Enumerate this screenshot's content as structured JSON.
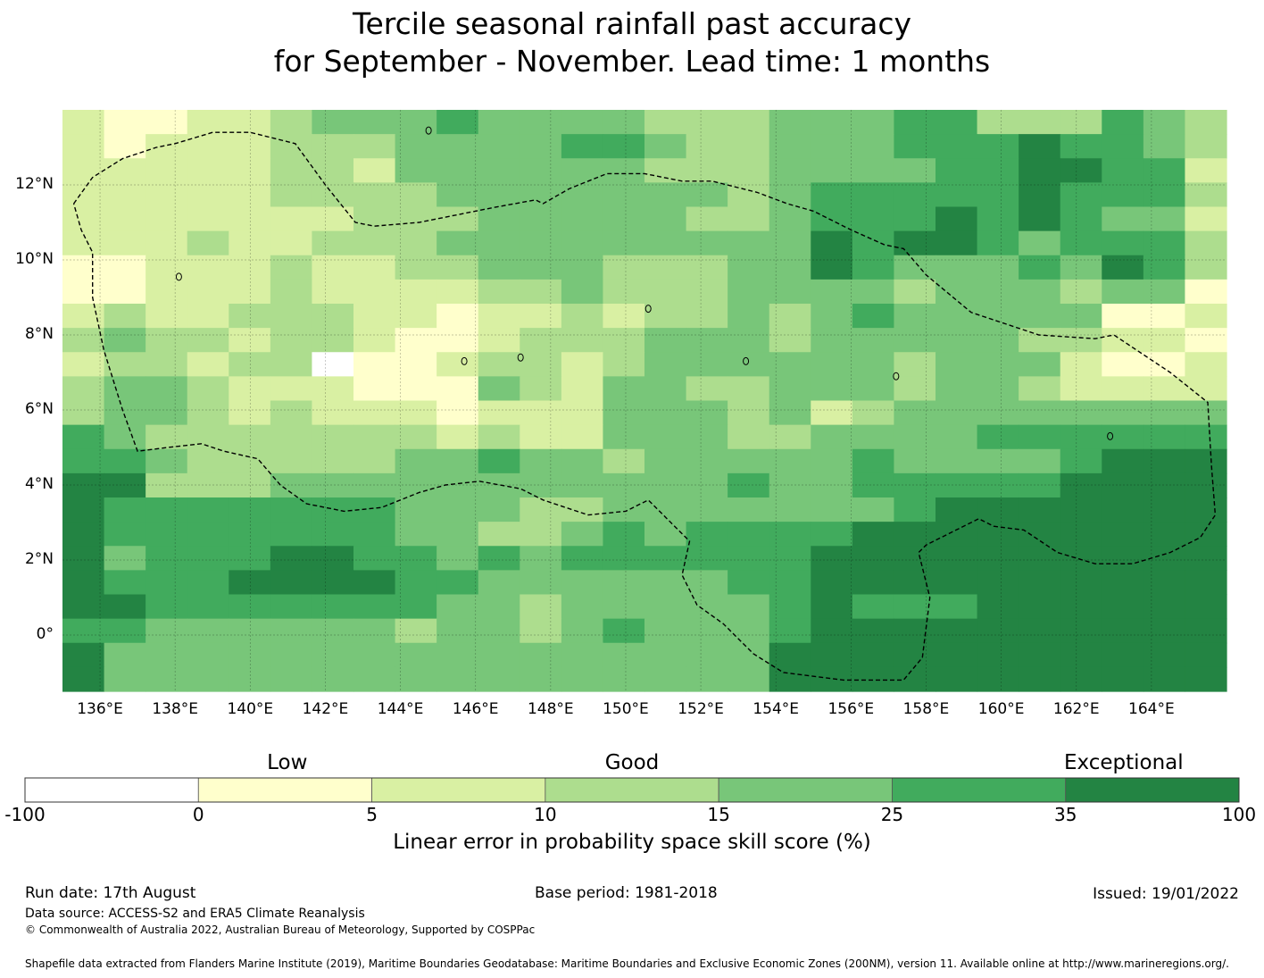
{
  "title": {
    "line1": "Tercile seasonal rainfall past accuracy",
    "line2": "for September - November. Lead time: 1 months"
  },
  "map": {
    "lon_ticks": [
      "136°E",
      "138°E",
      "140°E",
      "142°E",
      "144°E",
      "146°E",
      "148°E",
      "150°E",
      "152°E",
      "154°E",
      "156°E",
      "158°E",
      "160°E",
      "162°E",
      "164°E"
    ],
    "lat_ticks": [
      "12°N",
      "10°N",
      "8°N",
      "6°N",
      "4°N",
      "2°N",
      "0°"
    ],
    "extent": {
      "lon_min": 135.0,
      "lon_max": 166.0,
      "lat_min": -1.5,
      "lat_max": 14.0
    },
    "grid_rows": [
      "2112234445444433344455333543",
      "2122233344445543344455565543",
      "2222233244444433344445566552",
      "2222233334444444345555565553",
      "2222222333444443345556565442",
      "2223223334444444446566545553",
      "1122232233444333446544454653",
      "1122232222334333444434443441",
      "2322333221223233434544444112",
      "3433233211233344434444433221",
      "2332330112332344444434442112",
      "3443222111432443344434432222",
      "3443232221222444342344444444",
      "5433333332322444334444555555",
      "5543333344544344444544445666",
      "6633344444444444544555556666",
      "6555555544433444444456666666",
      "6555555544334545555666666666",
      "6455566554545555556666666666",
      "6555666655444444556666666666",
      "6655555554434444456555666666",
      "5544444434434544456666666666",
      "6444444444444444466666666666",
      "6444444444444444466666666666"
    ],
    "eez_boundary": [
      [
        135.3,
        11.5
      ],
      [
        135.8,
        12.2
      ],
      [
        136.6,
        12.7
      ],
      [
        137.5,
        13.0
      ],
      [
        138.0,
        13.1
      ],
      [
        139.0,
        13.4
      ],
      [
        140.0,
        13.4
      ],
      [
        141.2,
        13.1
      ],
      [
        142.0,
        12.0
      ],
      [
        142.8,
        11.0
      ],
      [
        143.3,
        10.9
      ],
      [
        144.5,
        11.0
      ],
      [
        145.5,
        11.2
      ],
      [
        146.5,
        11.4
      ],
      [
        147.6,
        11.6
      ],
      [
        147.8,
        11.5
      ],
      [
        148.5,
        11.9
      ],
      [
        149.5,
        12.3
      ],
      [
        150.5,
        12.3
      ],
      [
        151.5,
        12.1
      ],
      [
        152.3,
        12.1
      ],
      [
        153.5,
        11.8
      ],
      [
        154.3,
        11.5
      ],
      [
        155.0,
        11.3
      ],
      [
        156.0,
        10.8
      ],
      [
        156.9,
        10.4
      ],
      [
        157.4,
        10.3
      ],
      [
        158.0,
        9.6
      ],
      [
        159.2,
        8.6
      ],
      [
        161.0,
        8.0
      ],
      [
        162.5,
        7.9
      ],
      [
        163.0,
        8.0
      ],
      [
        164.5,
        7.0
      ],
      [
        165.5,
        6.2
      ],
      [
        165.6,
        4.5
      ],
      [
        165.7,
        3.2
      ],
      [
        165.3,
        2.6
      ],
      [
        164.5,
        2.2
      ],
      [
        163.5,
        1.9
      ],
      [
        162.5,
        1.9
      ],
      [
        161.5,
        2.2
      ],
      [
        160.6,
        2.8
      ],
      [
        159.8,
        2.9
      ],
      [
        159.4,
        3.1
      ],
      [
        158.8,
        2.8
      ],
      [
        158.0,
        2.4
      ],
      [
        157.8,
        2.2
      ],
      [
        158.1,
        1.0
      ],
      [
        157.9,
        -0.6
      ],
      [
        157.4,
        -1.2
      ],
      [
        155.8,
        -1.2
      ],
      [
        154.2,
        -1.0
      ],
      [
        153.4,
        -0.5
      ],
      [
        152.6,
        0.3
      ],
      [
        151.9,
        0.8
      ],
      [
        151.5,
        1.6
      ],
      [
        151.7,
        2.5
      ],
      [
        151.3,
        2.9
      ],
      [
        150.6,
        3.6
      ],
      [
        150.0,
        3.3
      ],
      [
        149.0,
        3.2
      ],
      [
        147.8,
        3.6
      ],
      [
        147.2,
        3.9
      ],
      [
        146.1,
        4.1
      ],
      [
        145.2,
        4.0
      ],
      [
        144.5,
        3.8
      ],
      [
        143.5,
        3.4
      ],
      [
        142.5,
        3.3
      ],
      [
        141.5,
        3.5
      ],
      [
        140.8,
        4.0
      ],
      [
        140.2,
        4.7
      ],
      [
        139.3,
        4.9
      ],
      [
        138.7,
        5.1
      ],
      [
        137.8,
        5.0
      ],
      [
        137.0,
        4.9
      ],
      [
        136.6,
        6.0
      ],
      [
        136.1,
        7.6
      ],
      [
        135.8,
        9.0
      ],
      [
        135.8,
        10.2
      ],
      [
        135.5,
        10.8
      ],
      [
        135.3,
        11.5
      ]
    ],
    "islands": [
      [
        144.75,
        13.45
      ],
      [
        138.1,
        9.55
      ],
      [
        153.2,
        7.3
      ],
      [
        157.2,
        6.9
      ],
      [
        162.9,
        5.3
      ],
      [
        150.6,
        8.7
      ],
      [
        145.7,
        7.3
      ],
      [
        147.2,
        7.4
      ]
    ]
  },
  "colorbar": {
    "categories": [
      {
        "label": "Low",
        "at": 0.216
      },
      {
        "label": "Good",
        "at": 0.5
      },
      {
        "label": "Exceptional",
        "at": 0.905
      }
    ],
    "ticks": [
      "-100",
      "0",
      "5",
      "10",
      "15",
      "25",
      "35",
      "100"
    ],
    "colors": [
      "#ffffff",
      "#ffffcc",
      "#d9f0a3",
      "#addd8e",
      "#78c679",
      "#41ab5d",
      "#238443"
    ],
    "label": "Linear error in probability space skill score (%)"
  },
  "footer": {
    "run_date": "Run date: 17th August",
    "base_period": "Base period: 1981-2018",
    "issued": "Issued: 19/01/2022",
    "data_source": "Data source: ACCESS-S2 and ERA5 Climate Reanalysis",
    "copyright": "© Commonwealth of Australia 2022, Australian Bureau of Meteorology, Supported by COSPPac",
    "shapefile": "Shapefile data extracted from Flanders Marine Institute (2019), Maritime Boundaries Geodatabase: Maritime Boundaries and Exclusive Economic Zones (200NM), version 11. Available online at http://www.marineregions.org/."
  }
}
